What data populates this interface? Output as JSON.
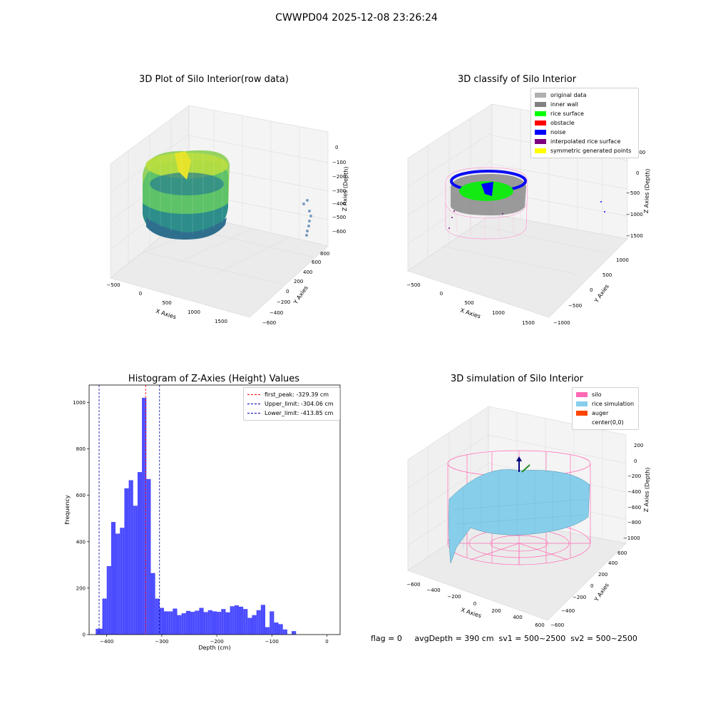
{
  "figure": {
    "title": "CWWPD04 2025-12-08 23:26:24"
  },
  "panel1": {
    "title": "3D Plot of Silo Interior(row data)",
    "xlabel": "X Axies",
    "ylabel": "Y Axies",
    "zlabel": "Z Axies (Depth)",
    "xticks": [
      "−500",
      "0",
      "500",
      "1000",
      "1500"
    ],
    "yticks": [
      "−600",
      "−400",
      "−200",
      "0",
      "200",
      "400",
      "600",
      "800"
    ],
    "zticks": [
      "0",
      "−100",
      "−200",
      "−300",
      "−400",
      "−500",
      "−600"
    ]
  },
  "panel2": {
    "title": "3D classify of Silo Interior",
    "xlabel": "X Axies",
    "ylabel": "Y Axies",
    "zlabel": "Z Axies (Depth)",
    "xticks": [
      "−500",
      "0",
      "500",
      "1000",
      "1500"
    ],
    "yticks": [
      "−1000",
      "−500",
      "0",
      "500",
      "1000"
    ],
    "zticks": [
      "500",
      "0",
      "−500",
      "−1000",
      "−1500"
    ],
    "legend": [
      {
        "label": "original data",
        "color": "#b0b0b0"
      },
      {
        "label": "inner wall",
        "color": "#808080"
      },
      {
        "label": "rice surface",
        "color": "#00ff00"
      },
      {
        "label": "obstacle",
        "color": "#ff0000"
      },
      {
        "label": "noise",
        "color": "#0000ff"
      },
      {
        "label": "interpolated rice surface",
        "color": "#800080"
      },
      {
        "label": "symmetric generated points",
        "color": "#ffff00"
      }
    ]
  },
  "panel4": {
    "title": "3D simulation of Silo Interior",
    "xlabel": "X Axies",
    "ylabel": "Y Axies",
    "zlabel": "Z Axies (Depth)",
    "xticks": [
      "−600",
      "−400",
      "−200",
      "0",
      "200",
      "400",
      "600"
    ],
    "yticks": [
      "−600",
      "−400",
      "−200",
      "0",
      "200",
      "400",
      "600"
    ],
    "zticks": [
      "200",
      "0",
      "−200",
      "−400",
      "−600",
      "−800",
      "−1000"
    ],
    "legend": [
      {
        "label": "silo",
        "color": "#ff69b4"
      },
      {
        "label": "rice simulation",
        "color": "#87ceeb"
      },
      {
        "label": "auger",
        "color": "#ff4500"
      },
      {
        "label": "center(0,0)",
        "color": "#ffffff"
      }
    ]
  },
  "footer": {
    "text": "flag = 0     avgDepth = 390 cm  sv1 = 500~2500  sv2 = 500~2500"
  },
  "chart_data": {
    "type": "bar",
    "title": "Histogram of Z-Axies (Height) Values",
    "xlabel": "Depth (cm)",
    "ylabel": "Frequency",
    "xlim": [
      -432,
      24
    ],
    "ylim": [
      0,
      1075
    ],
    "bin_width": 8,
    "bar_color": "#4b4bff",
    "xticks": [
      -400,
      -300,
      -200,
      -100,
      0
    ],
    "xtick_labels": [
      "−400",
      "−300",
      "−200",
      "−100",
      "0"
    ],
    "yticks": [
      0,
      200,
      400,
      600,
      800,
      1000
    ],
    "bin_left": [
      -420,
      -412,
      -408,
      -404,
      -400,
      -396,
      -392,
      -388,
      -384,
      -380,
      -376,
      -372,
      -368,
      -364,
      -360,
      -356,
      -352,
      -348,
      -344,
      -340,
      -336,
      -332,
      -328,
      -324,
      -320,
      -316,
      -312,
      -308,
      -304,
      -300,
      -296,
      -292,
      -288,
      -284,
      -280,
      -276,
      -272,
      -268,
      -264,
      -260,
      -256,
      -252,
      -248,
      -244,
      -240,
      -236,
      -232,
      -228,
      -224,
      -220,
      -216,
      -212,
      -208,
      -204,
      -200,
      -196,
      -192,
      -188,
      -184,
      -180,
      -176,
      -172,
      -168,
      -164,
      -160,
      -156,
      -152,
      -148,
      -144,
      -140,
      -136,
      -132,
      -128,
      -124,
      -120,
      -116,
      -112,
      -108,
      -104,
      -100,
      -96,
      -92,
      -88,
      -84,
      -80,
      -76,
      -72,
      -68,
      -64,
      -60,
      -56,
      -52,
      -48,
      -44,
      -40,
      -36,
      -32,
      -28,
      -24,
      -20,
      -16,
      -12,
      -8,
      -4
    ],
    "values": [
      25,
      25,
      155,
      155,
      295,
      295,
      485,
      485,
      435,
      435,
      460,
      460,
      630,
      630,
      665,
      665,
      555,
      555,
      700,
      700,
      1020,
      1020,
      670,
      670,
      265,
      265,
      155,
      155,
      115,
      115,
      100,
      100,
      100,
      100,
      112,
      112,
      84,
      84,
      92,
      92,
      102,
      102,
      98,
      98,
      103,
      103,
      115,
      115,
      97,
      97,
      105,
      105,
      100,
      100,
      98,
      98,
      110,
      110,
      96,
      96,
      122,
      122,
      126,
      126,
      120,
      120,
      110,
      110,
      72,
      72,
      84,
      84,
      105,
      105,
      128,
      128,
      32,
      32,
      100,
      100,
      52,
      52,
      45,
      45,
      22,
      22,
      2,
      2,
      15,
      15,
      0,
      0,
      0,
      0,
      0,
      0,
      0,
      0,
      0,
      0,
      0,
      0,
      0,
      0
    ],
    "lines": [
      {
        "name": "first_peak: -329.39 cm",
        "x": -329.39,
        "color": "#ff0000"
      },
      {
        "name": "Upper_limit: -304.06 cm",
        "x": -304.06,
        "color": "#0000aa"
      },
      {
        "name": "Lower_limit: -413.85 cm",
        "x": -413.85,
        "color": "#0000aa"
      }
    ]
  }
}
